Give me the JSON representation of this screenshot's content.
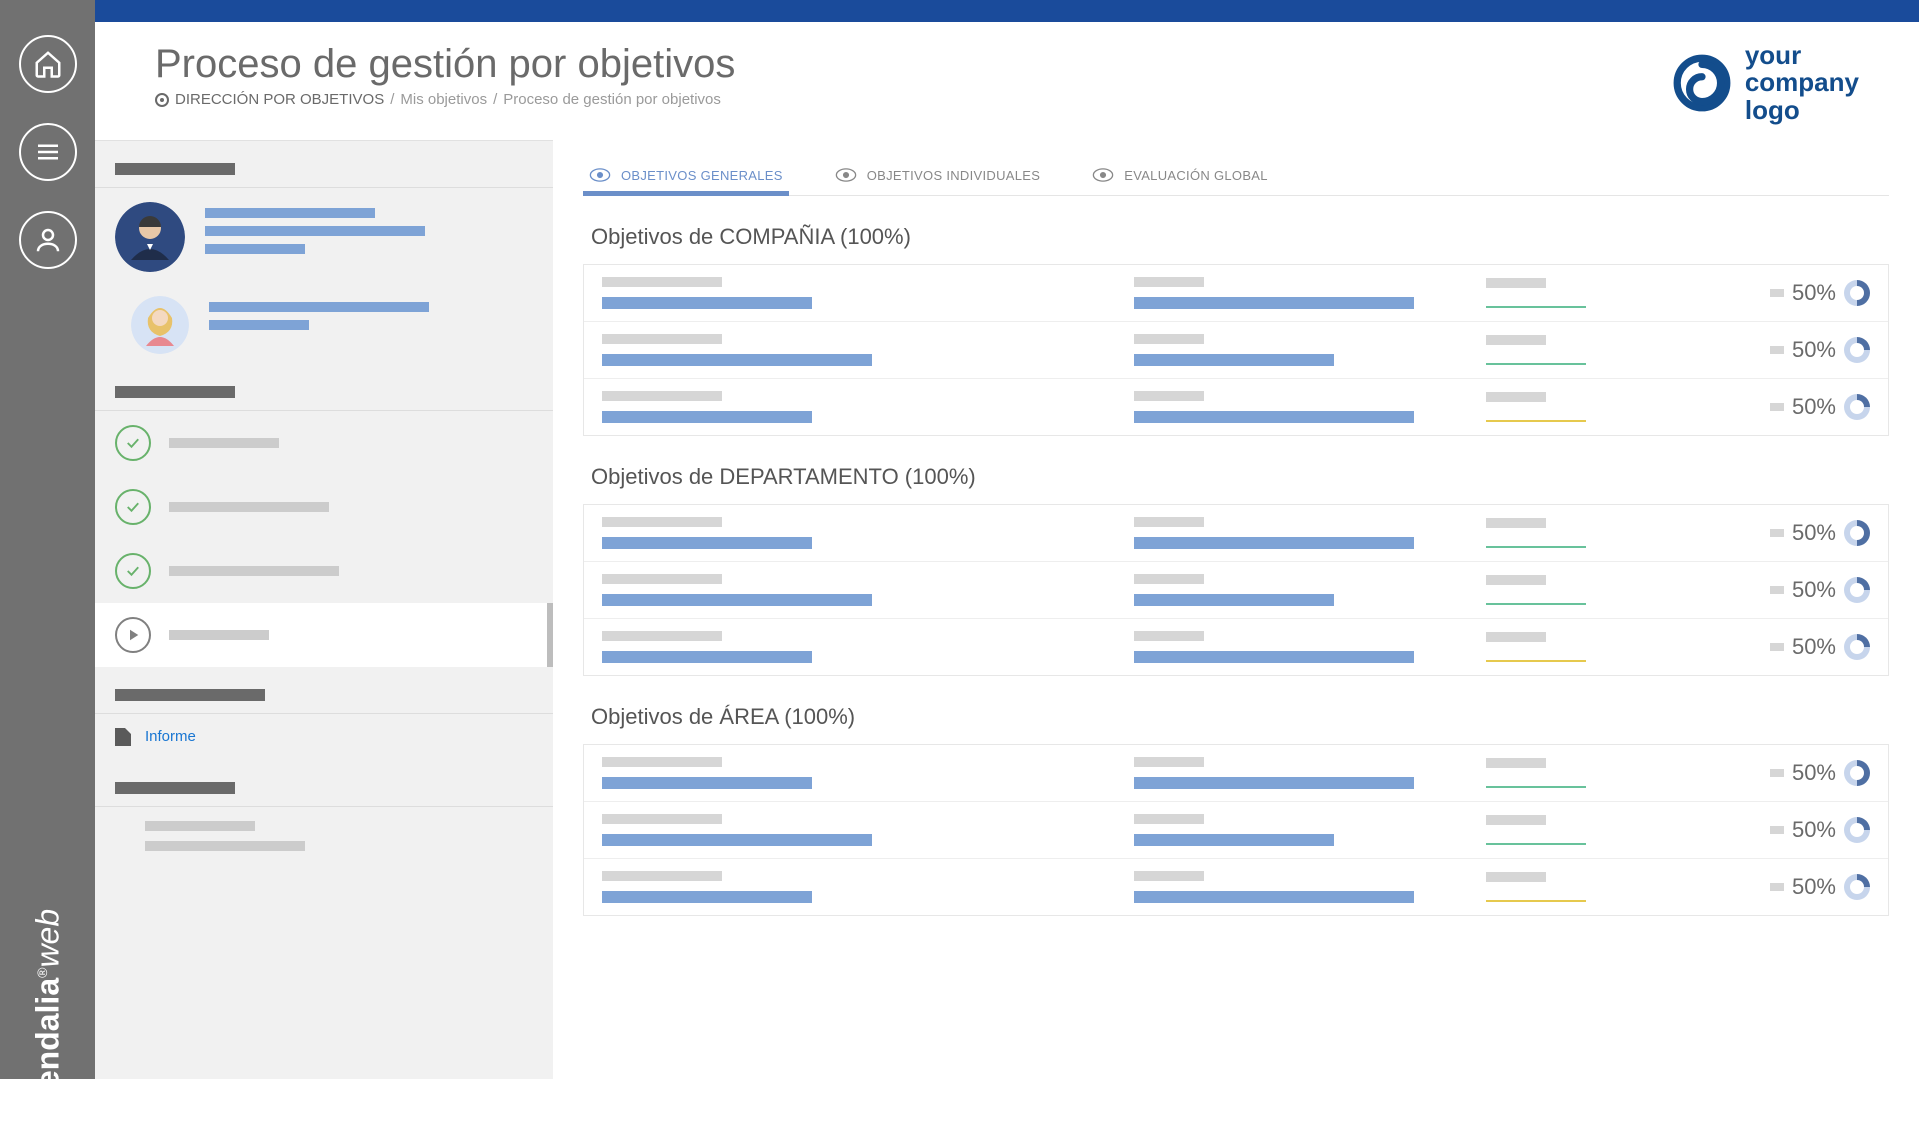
{
  "colors": {
    "rail": "#717171",
    "topbar": "#1a4b9b",
    "sidebar_bg": "#f1f1f1",
    "accent": "#7ea3d6",
    "tab_active": "#6b8fc9",
    "brand": "#134d8c",
    "link": "#1976d2",
    "done": "#68b26b",
    "line_green": "#68c29b",
    "line_yellow": "#e6c94e",
    "donut_dark": "#4f6fa3",
    "donut_light": "#c7d5ec"
  },
  "brand": {
    "rail_name": "endalia",
    "rail_sub": "web",
    "rail_reg": "®",
    "logo_l1": "your",
    "logo_l2": "company",
    "logo_l3": "logo"
  },
  "header": {
    "title": "Proceso de gestión por objetivos",
    "bc1": "DIRECCIÓN POR OBJETIVOS",
    "bc2": "Mis objetivos",
    "bc3": "Proceso de gestión por objetivos",
    "sep": " / "
  },
  "sidebar": {
    "informe": "Informe"
  },
  "tabs": [
    {
      "label": "OBJETIVOS GENERALES",
      "active": true
    },
    {
      "label": "OBJETIVOS INDIVIDUALES",
      "active": false
    },
    {
      "label": "EVALUACIÓN GLOBAL",
      "active": false
    }
  ],
  "sections": [
    {
      "title": "Objetivos de COMPAÑIA (100%)",
      "rows": [
        {
          "pct": "50%",
          "donut_pct": 50,
          "thin": "green",
          "aw": [
            "aw1",
            "aw2"
          ],
          "bw": [
            "bw1",
            "bw2"
          ],
          "cw": [
            "cw1",
            "cw2"
          ]
        },
        {
          "pct": "50%",
          "donut_pct": 25,
          "thin": "green",
          "aw": [
            "aw1",
            "aw3"
          ],
          "bw": [
            "bw1",
            "bw3"
          ],
          "cw": [
            "cw1",
            "cw2"
          ]
        },
        {
          "pct": "50%",
          "donut_pct": 25,
          "thin": "yellow",
          "aw": [
            "aw1",
            "aw2"
          ],
          "bw": [
            "bw1",
            "bw2"
          ],
          "cw": [
            "cw1",
            "cw2"
          ]
        }
      ]
    },
    {
      "title": "Objetivos de DEPARTAMENTO (100%)",
      "rows": [
        {
          "pct": "50%",
          "donut_pct": 50,
          "thin": "green",
          "aw": [
            "aw1",
            "aw2"
          ],
          "bw": [
            "bw1",
            "bw2"
          ],
          "cw": [
            "cw1",
            "cw2"
          ]
        },
        {
          "pct": "50%",
          "donut_pct": 25,
          "thin": "green",
          "aw": [
            "aw1",
            "aw3"
          ],
          "bw": [
            "bw1",
            "bw3"
          ],
          "cw": [
            "cw1",
            "cw2"
          ]
        },
        {
          "pct": "50%",
          "donut_pct": 25,
          "thin": "yellow",
          "aw": [
            "aw1",
            "aw2"
          ],
          "bw": [
            "bw1",
            "bw2"
          ],
          "cw": [
            "cw1",
            "cw2"
          ]
        }
      ]
    },
    {
      "title": "Objetivos de ÁREA (100%)",
      "rows": [
        {
          "pct": "50%",
          "donut_pct": 50,
          "thin": "green",
          "aw": [
            "aw1",
            "aw2"
          ],
          "bw": [
            "bw1",
            "bw2"
          ],
          "cw": [
            "cw1",
            "cw2"
          ]
        },
        {
          "pct": "50%",
          "donut_pct": 25,
          "thin": "green",
          "aw": [
            "aw1",
            "aw3"
          ],
          "bw": [
            "bw1",
            "bw3"
          ],
          "cw": [
            "cw1",
            "cw2"
          ]
        },
        {
          "pct": "50%",
          "donut_pct": 25,
          "thin": "yellow",
          "aw": [
            "aw1",
            "aw2"
          ],
          "bw": [
            "bw1",
            "bw2"
          ],
          "cw": [
            "cw1",
            "cw2"
          ]
        }
      ]
    }
  ]
}
